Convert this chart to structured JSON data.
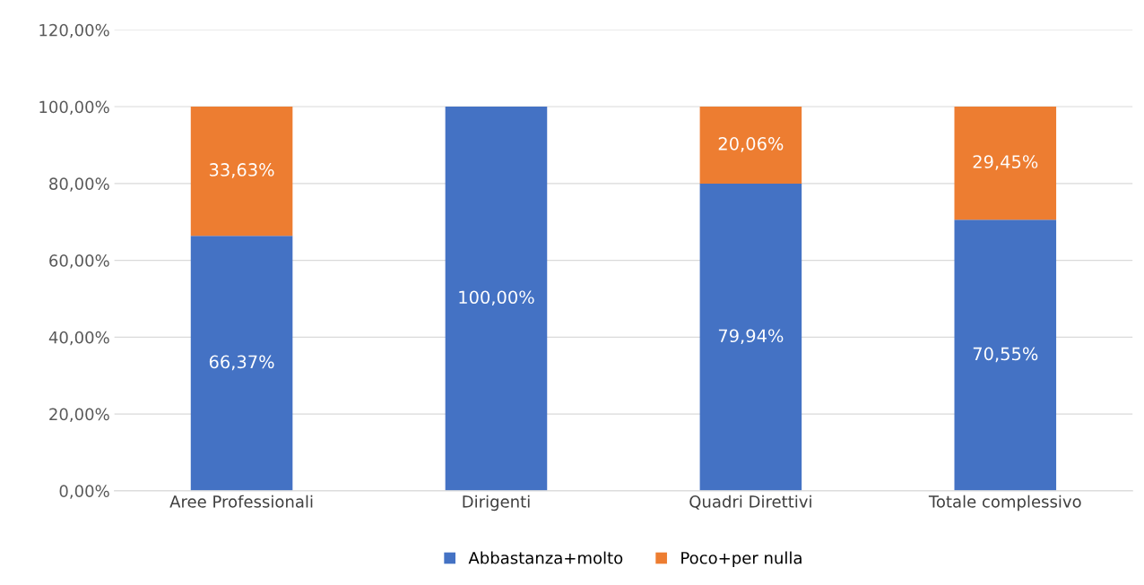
{
  "chart_data": {
    "type": "bar",
    "stacked": true,
    "categories": [
      "Aree Professionali",
      "Dirigenti",
      "Quadri Direttivi",
      "Totale complessivo"
    ],
    "series": [
      {
        "name": "Abbastanza+molto",
        "color": "#4472c4",
        "values": [
          66.37,
          100,
          79.94,
          70.55
        ],
        "value_labels": [
          "66,37%",
          "100,00%",
          "79,94%",
          "70,55%"
        ]
      },
      {
        "name": "Poco+per nulla",
        "color": "#ed7d31",
        "values": [
          33.63,
          0,
          20.06,
          29.45
        ],
        "value_labels": [
          "33,63%",
          null,
          "20,06%",
          "29,45%"
        ]
      }
    ],
    "ylim": [
      0,
      120
    ],
    "yticks": [
      {
        "value": 0,
        "label": "0,00%"
      },
      {
        "value": 20,
        "label": "20,00%"
      },
      {
        "value": 40,
        "label": "40,00%"
      },
      {
        "value": 60,
        "label": "60,00%"
      },
      {
        "value": 80,
        "label": "80,00%"
      },
      {
        "value": 100,
        "label": "100,00%"
      },
      {
        "value": 120,
        "label": "120,00%"
      }
    ],
    "grid": "y",
    "legend": "bottom"
  }
}
